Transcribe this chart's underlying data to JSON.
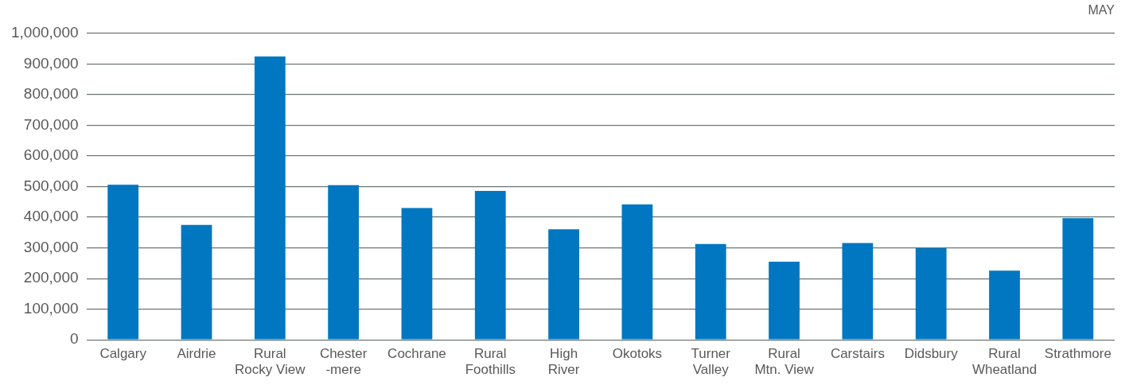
{
  "chart_data": {
    "type": "bar",
    "title": "MAY",
    "categories": [
      "Calgary",
      "Airdrie",
      "Rural\nRocky View",
      "Chester\n-mere",
      "Cochrane",
      "Rural\nFoothills",
      "High\nRiver",
      "Okotoks",
      "Turner\nValley",
      "Rural\nMtn. View",
      "Carstairs",
      "Didsbury",
      "Rural\nWheatland",
      "Strathmore"
    ],
    "values": [
      506000,
      375000,
      925000,
      505000,
      430000,
      486000,
      361000,
      442000,
      313000,
      255000,
      316000,
      299000,
      226000,
      397000
    ],
    "color": "#0077c0",
    "ylim": [
      0,
      1000000
    ],
    "yticks": [
      {
        "value": 0,
        "label": "0"
      },
      {
        "value": 100000,
        "label": "100,000"
      },
      {
        "value": 200000,
        "label": "200,000"
      },
      {
        "value": 300000,
        "label": "300,000"
      },
      {
        "value": 400000,
        "label": "400,000"
      },
      {
        "value": 500000,
        "label": "500,000"
      },
      {
        "value": 600000,
        "label": "600,000"
      },
      {
        "value": 700000,
        "label": "700,000"
      },
      {
        "value": 800000,
        "label": "800,000"
      },
      {
        "value": 900000,
        "label": "900,000"
      },
      {
        "value": 1000000,
        "label": "1,000,000"
      }
    ],
    "grid": "y",
    "legend": false
  }
}
